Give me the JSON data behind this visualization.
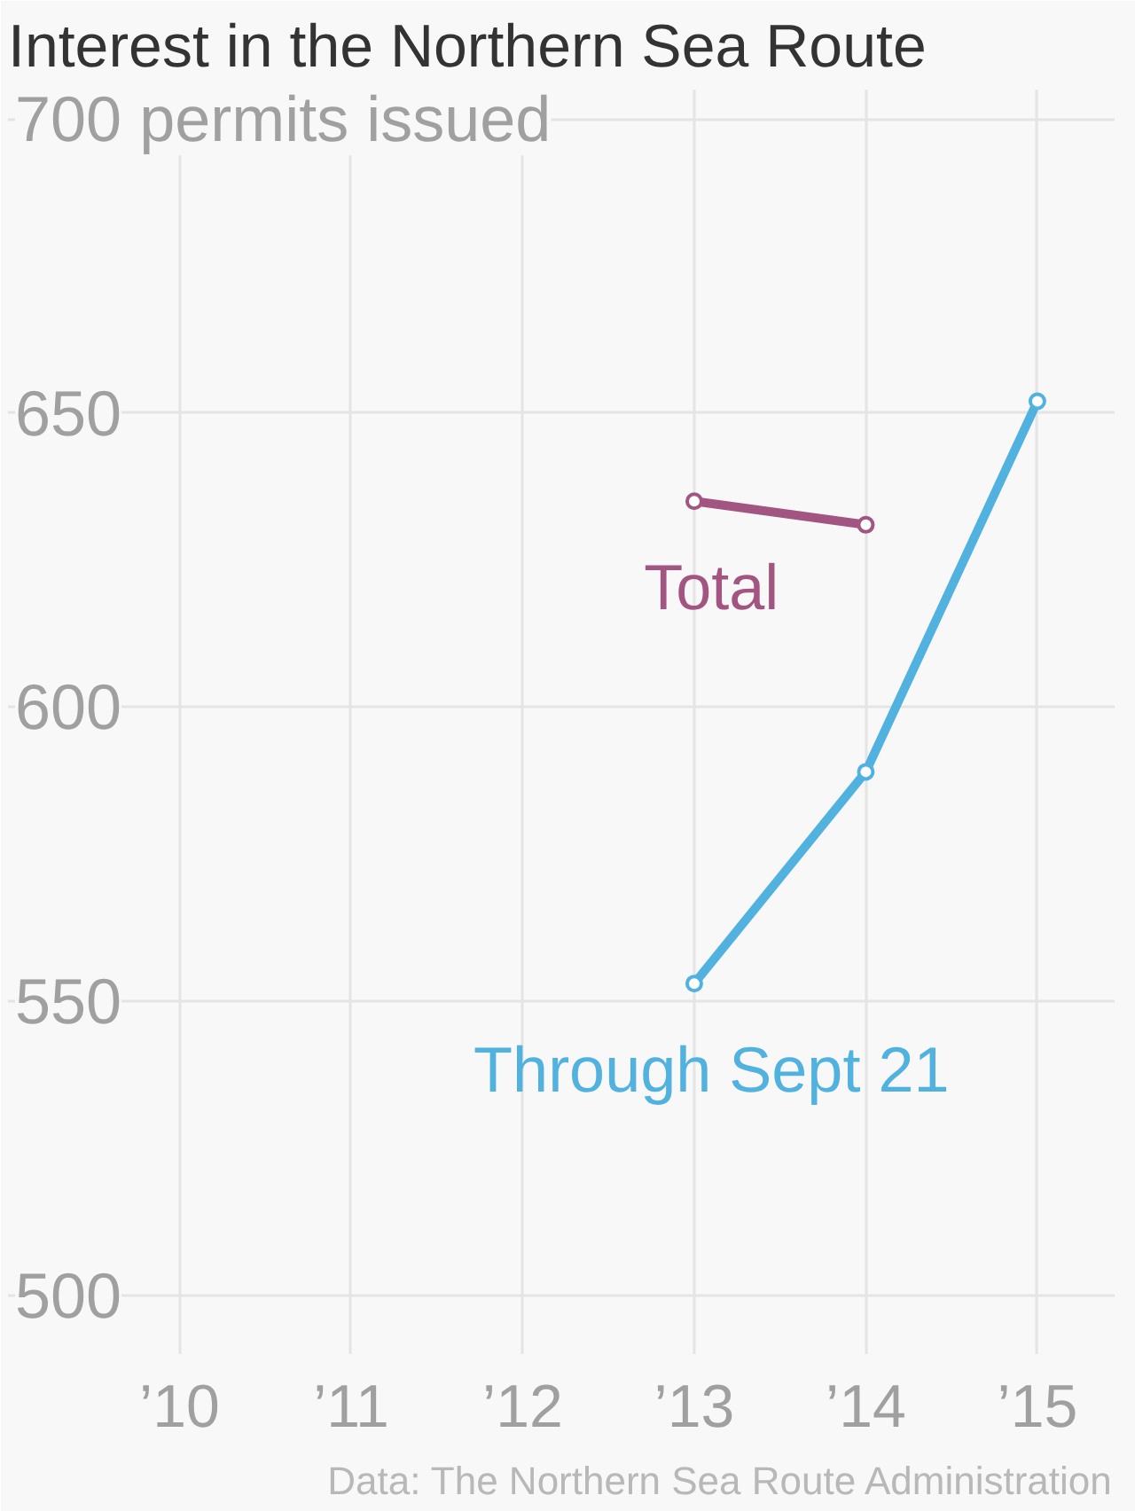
{
  "chart_data": {
    "type": "line",
    "title": "Interest in the Northern Sea Route",
    "annotations": [
      "Data: The Northern Sea Route Administration"
    ],
    "xlim": [
      2009.0,
      2015.45
    ],
    "ylim": [
      490,
      705
    ],
    "xticks": [
      {
        "value": 2010,
        "label": "’10"
      },
      {
        "value": 2011,
        "label": "’11"
      },
      {
        "value": 2012,
        "label": "’12"
      },
      {
        "value": 2013,
        "label": "’13"
      },
      {
        "value": 2014,
        "label": "’14"
      },
      {
        "value": 2015,
        "label": "’15"
      }
    ],
    "yticks": [
      500,
      550,
      600,
      650,
      {
        "value": 700,
        "label": "700 permits issued"
      }
    ],
    "grid": true,
    "marker": "circle",
    "line_style": "solid",
    "series": [
      {
        "name": "Total",
        "color": "#a35582",
        "x": [
          2013,
          2014
        ],
        "values": [
          635,
          631
        ]
      },
      {
        "name": "Through Sept 21",
        "color": "#51b2e0",
        "x": [
          2013,
          2014,
          2015
        ],
        "values": [
          553,
          589,
          652
        ]
      }
    ]
  }
}
